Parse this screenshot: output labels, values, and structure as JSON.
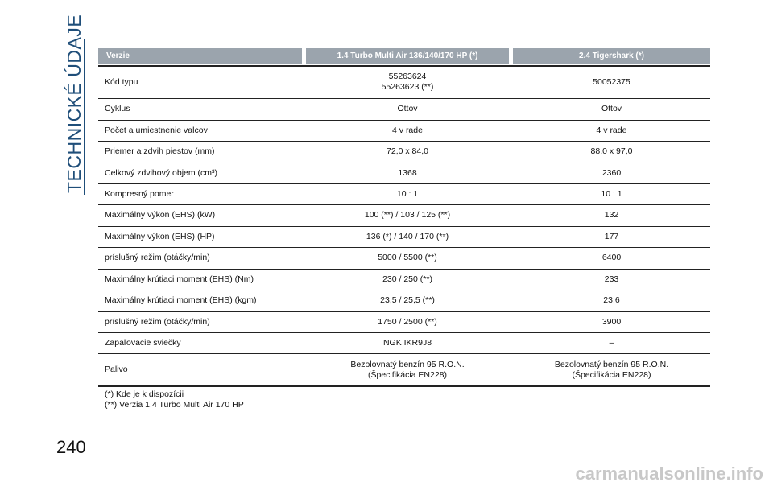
{
  "side_title": "TECHNICKÉ ÚDAJE",
  "page_number": "240",
  "watermark": "carmanualsonline.info",
  "table": {
    "header": [
      "Verzie",
      "1.4 Turbo Multi Air 136/140/170 HP (*)",
      "2.4 Tigershark (*)"
    ],
    "rows": [
      [
        "Kód typu",
        [
          "55263624",
          "55263623 (**)"
        ],
        "50052375"
      ],
      [
        "Cyklus",
        "Ottov",
        "Ottov"
      ],
      [
        "Počet a umiestnenie valcov",
        "4 v rade",
        "4 v rade"
      ],
      [
        "Priemer a zdvih piestov (mm)",
        "72,0 x 84,0",
        "88,0 x 97,0"
      ],
      [
        "Celkový zdvihový objem (cm³)",
        "1368",
        "2360"
      ],
      [
        "Kompresný pomer",
        "10 : 1",
        "10 : 1"
      ],
      [
        "Maximálny výkon (EHS) (kW)",
        "100 (**) / 103 / 125 (**)",
        "132"
      ],
      [
        "Maximálny výkon (EHS) (HP)",
        "136 (*) / 140 / 170 (**)",
        "177"
      ],
      [
        "príslušný režim (otáčky/min)",
        "5000 / 5500 (**)",
        "6400"
      ],
      [
        "Maximálny krútiaci moment (EHS) (Nm)",
        "230 / 250 (**)",
        "233"
      ],
      [
        "Maximálny krútiaci moment (EHS) (kgm)",
        "23,5 / 25,5 (**)",
        "23,6"
      ],
      [
        "príslušný režim (otáčky/min)",
        "1750 / 2500 (**)",
        "3900"
      ],
      [
        "Zapaľovacie sviečky",
        "NGK IKR9J8",
        "–"
      ],
      [
        "Palivo",
        [
          "Bezolovnatý benzín 95 R.O.N.",
          "(Špecifikácia EN228)"
        ],
        [
          "Bezolovnatý benzín 95 R.O.N.",
          "(Špecifikácia EN228)"
        ]
      ]
    ],
    "footnotes": [
      "(*) Kde je k dispozícii",
      "(**) Verzia 1.4 Turbo Multi Air 170 HP"
    ]
  }
}
